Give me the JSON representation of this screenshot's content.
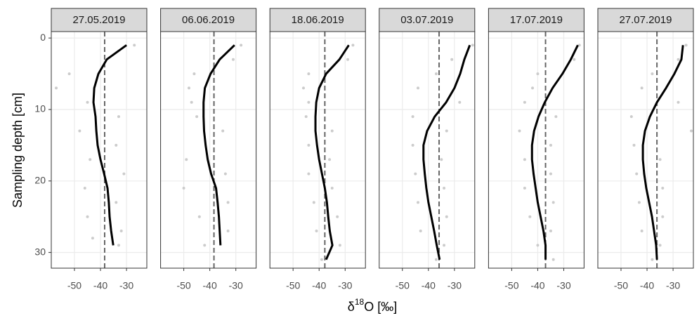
{
  "chart_data": {
    "type": "line",
    "xlabel": {
      "symbol": "δ",
      "sup": "18",
      "rest": "O [‰]"
    },
    "ylabel": "Sampling depth [cm]",
    "xlim": [
      -58.9,
      -22.2
    ],
    "ylim": [
      -0.9,
      32.2
    ],
    "y_reversed": true,
    "xticks": [
      -50,
      -40,
      -30
    ],
    "yticks": [
      0,
      10,
      20,
      30
    ],
    "grid": true,
    "line_color": "#000000",
    "point_color": "#cccccc",
    "reference_color": "#666666",
    "panels": [
      {
        "title": "27.05.2019",
        "reference_x": -38.4,
        "line": {
          "x": [
            -30,
            -37.6,
            -40.8,
            -42.4,
            -42.7,
            -41.9,
            -41.6,
            -41.1,
            -40,
            -38.6,
            -37.3,
            -36.8,
            -36.5,
            -35.9,
            -35.1
          ],
          "y": [
            1,
            3,
            5,
            7,
            9,
            11,
            13,
            15,
            17,
            19,
            21,
            23,
            25,
            27,
            29
          ]
        },
        "points": {
          "x": [
            -27,
            -52,
            -57,
            -45,
            -33,
            -48,
            -34,
            -44,
            -31,
            -46,
            -34,
            -45,
            -32,
            -43,
            -33
          ],
          "y": [
            1,
            5,
            7,
            9,
            11,
            13,
            15,
            17,
            19,
            21,
            23,
            25,
            27,
            28,
            29
          ]
        }
      },
      {
        "title": "06.06.2019",
        "reference_x": -38.4,
        "line": {
          "x": [
            -30.5,
            -36.2,
            -39.7,
            -41.9,
            -42.4,
            -42.4,
            -42.2,
            -41.6,
            -40.8,
            -39.5,
            -37.6,
            -37,
            -36.5,
            -36.2,
            -35.9
          ],
          "y": [
            1,
            3,
            5,
            7,
            9,
            11,
            13,
            15,
            17,
            19,
            21,
            23,
            25,
            27,
            29
          ]
        },
        "points": {
          "x": [
            -28,
            -31,
            -46,
            -48,
            -47,
            -45,
            -35,
            -49,
            -34,
            -50,
            -33,
            -44,
            -33,
            -42
          ],
          "y": [
            1,
            3,
            5,
            7,
            9,
            11,
            13,
            17,
            19,
            21,
            23,
            25,
            27,
            29
          ]
        }
      },
      {
        "title": "18.06.2019",
        "reference_x": -37.8,
        "line": {
          "x": [
            -28.6,
            -32.2,
            -37.3,
            -40,
            -41.1,
            -41.4,
            -41.4,
            -40.8,
            -40,
            -38.9,
            -37.8,
            -37,
            -36.5,
            -35.9,
            -34.9,
            -37.3
          ],
          "y": [
            1,
            3,
            5,
            7,
            9,
            11,
            13,
            15,
            17,
            19,
            21,
            23,
            25,
            27,
            29,
            31
          ]
        },
        "points": {
          "x": [
            -27,
            -29,
            -44,
            -46,
            -44,
            -45,
            -35,
            -44,
            -36,
            -44,
            -35,
            -42,
            -33,
            -41,
            -32,
            -39
          ],
          "y": [
            1,
            3,
            5,
            7,
            9,
            11,
            13,
            15,
            17,
            19,
            21,
            23,
            25,
            27,
            29,
            31
          ]
        }
      },
      {
        "title": "03.07.2019",
        "reference_x": -35.9,
        "line": {
          "x": [
            -24.1,
            -26.2,
            -27.8,
            -30,
            -33.2,
            -37.6,
            -40.5,
            -41.9,
            -41.9,
            -41.4,
            -40.8,
            -40,
            -38.9,
            -37.8,
            -36.8,
            -35.7
          ],
          "y": [
            1,
            3,
            5,
            7,
            9,
            11,
            13,
            15,
            17,
            19,
            21,
            23,
            25,
            27,
            29,
            31
          ]
        },
        "points": {
          "x": [
            -23,
            -31,
            -37,
            -44,
            -28,
            -46,
            -33,
            -46,
            -35,
            -45,
            -34,
            -44,
            -33,
            -43,
            -34,
            -37
          ],
          "y": [
            1,
            3,
            5,
            7,
            9,
            11,
            13,
            15,
            17,
            19,
            21,
            23,
            25,
            27,
            29,
            31
          ]
        }
      },
      {
        "title": "17.07.2019",
        "reference_x": -37,
        "line": {
          "x": [
            -24.6,
            -27.3,
            -30.5,
            -34.3,
            -37.3,
            -39.7,
            -41.4,
            -42.2,
            -42.2,
            -41.6,
            -40.8,
            -40,
            -38.9,
            -37.8,
            -37,
            -37
          ],
          "y": [
            1,
            3,
            5,
            7,
            9,
            11,
            13,
            15,
            17,
            19,
            21,
            23,
            25,
            27,
            29,
            31
          ]
        },
        "points": {
          "x": [
            -24,
            -26,
            -40,
            -42,
            -45,
            -33,
            -47,
            -35,
            -45,
            -35,
            -45,
            -34,
            -43,
            -35,
            -40,
            -34
          ],
          "y": [
            1,
            3,
            5,
            7,
            9,
            11,
            13,
            15,
            17,
            19,
            21,
            23,
            25,
            27,
            29,
            31
          ]
        }
      },
      {
        "title": "27.07.2019",
        "reference_x": -36.2,
        "line": {
          "x": [
            -26.2,
            -26.8,
            -29.5,
            -32.7,
            -36.2,
            -38.9,
            -40.8,
            -41.6,
            -41.6,
            -41.1,
            -40.3,
            -39.2,
            -38.1,
            -37.3,
            -36.5,
            -36.2
          ],
          "y": [
            1,
            3,
            5,
            7,
            9,
            11,
            13,
            15,
            17,
            19,
            21,
            23,
            25,
            27,
            29,
            31
          ]
        },
        "points": {
          "x": [
            -25,
            -28,
            -38,
            -42,
            -28,
            -46,
            -23,
            -45,
            -35,
            -44,
            -34,
            -43,
            -34,
            -42,
            -35,
            -38
          ],
          "y": [
            1,
            3,
            5,
            7,
            9,
            11,
            13,
            15,
            17,
            19,
            21,
            23,
            25,
            27,
            29,
            31
          ]
        }
      }
    ]
  }
}
